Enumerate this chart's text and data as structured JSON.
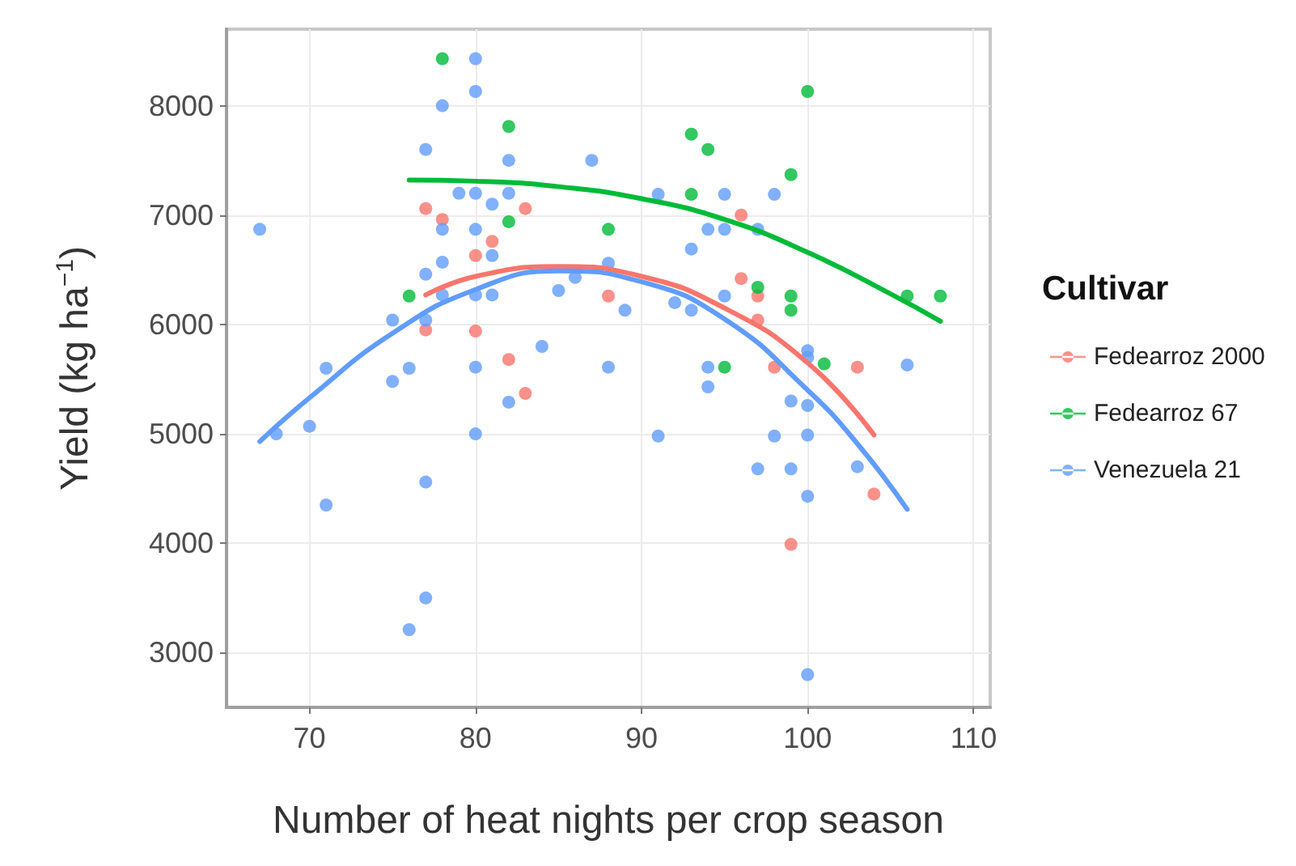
{
  "chart_data": {
    "type": "scatter",
    "xlabel": "Number of heat nights per crop season",
    "ylabel": "Yield (kg ha$^{−1}$)",
    "legend_title": "Cultivar",
    "legend": "right",
    "grid": true,
    "marker": "circle",
    "xlim": [
      65,
      111
    ],
    "xticks": [
      70,
      80,
      90,
      100,
      110
    ],
    "ylim": [
      2500,
      8700
    ],
    "yticks": [
      3000,
      4000,
      5000,
      6000,
      7000,
      8000
    ],
    "series": [
      {
        "name": "Fedearroz 2000",
        "color": "#f8766d",
        "x": [
          77,
          77,
          78,
          80,
          80,
          81,
          82,
          83,
          83,
          88,
          96,
          96,
          97,
          97,
          98,
          99,
          103,
          104
        ],
        "values": [
          7060,
          5950,
          6960,
          6630,
          5940,
          6760,
          5680,
          7060,
          5370,
          6260,
          7000,
          6420,
          6260,
          6040,
          5610,
          3990,
          5610,
          4450
        ]
      },
      {
        "name": "Fedearroz 67",
        "color": "#00ba38",
        "x": [
          76,
          78,
          82,
          82,
          88,
          93,
          93,
          94,
          95,
          97,
          99,
          99,
          99,
          100,
          101,
          106,
          108
        ],
        "values": [
          6260,
          8430,
          7810,
          6940,
          6870,
          7740,
          7190,
          7600,
          5610,
          6340,
          7370,
          6260,
          6130,
          8130,
          5640,
          6260,
          6260
        ]
      },
      {
        "name": "Venezuela 21",
        "color": "#619cff",
        "x": [
          67,
          68,
          70,
          71,
          71,
          75,
          75,
          76,
          76,
          77,
          77,
          77,
          77,
          77,
          78,
          78,
          78,
          78,
          79,
          80,
          80,
          80,
          80,
          80,
          80,
          80,
          81,
          81,
          81,
          82,
          82,
          82,
          84,
          85,
          86,
          87,
          88,
          88,
          89,
          91,
          91,
          92,
          93,
          93,
          94,
          94,
          94,
          95,
          95,
          95,
          97,
          97,
          98,
          98,
          99,
          99,
          100,
          100,
          100,
          100,
          100,
          100,
          103,
          106
        ],
        "values": [
          6870,
          5000,
          5070,
          5600,
          4350,
          5480,
          6040,
          5600,
          3210,
          7600,
          6460,
          6040,
          4560,
          3500,
          8000,
          6870,
          6570,
          6270,
          7200,
          8430,
          8130,
          7200,
          6870,
          6270,
          5610,
          5000,
          7100,
          6270,
          6630,
          7500,
          7200,
          5290,
          5800,
          6310,
          6430,
          7500,
          6560,
          5610,
          6130,
          7190,
          4980,
          6200,
          6690,
          6130,
          6870,
          5610,
          5430,
          7190,
          6870,
          6260,
          6870,
          4680,
          7190,
          4980,
          5300,
          4680,
          5700,
          5260,
          4990,
          4430,
          2800,
          5760,
          4700,
          5630
        ]
      },
      {
        "type": "line",
        "marker": "none",
        "color": "#f8766d",
        "x": [
          77,
          80,
          85,
          90,
          95,
          100,
          104
        ],
        "values": [
          6270,
          6440,
          6530,
          6440,
          6150,
          5650,
          4990
        ]
      },
      {
        "type": "line",
        "marker": "none",
        "color": "#00ba38",
        "x": [
          76,
          80,
          85,
          90,
          95,
          100,
          105,
          108
        ],
        "values": [
          7320,
          7310,
          7260,
          7150,
          6960,
          6660,
          6280,
          6030
        ]
      },
      {
        "type": "line",
        "marker": "none",
        "color": "#619cff",
        "x": [
          67,
          70,
          75,
          80,
          85,
          90,
          95,
          100,
          103,
          106
        ],
        "values": [
          4930,
          5330,
          5920,
          6320,
          6490,
          6390,
          6050,
          5400,
          4910,
          4310
        ]
      }
    ]
  }
}
